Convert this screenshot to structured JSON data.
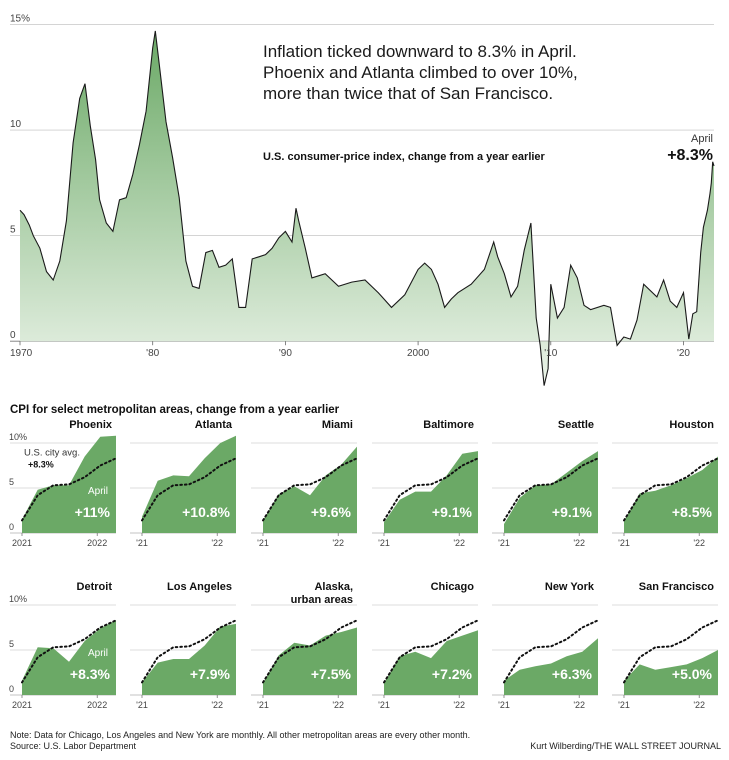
{
  "headline": [
    "Inflation ticked downward to 8.3% in April.",
    "Phoenix and Atlanta climbed to over 10%,",
    "more than twice that of San Francisco."
  ],
  "main_chart_subtitle": "U.S. consumer-price index, change from a year earlier",
  "callout": {
    "label": "April",
    "value": "+8.3%"
  },
  "metro_section_title": "CPI for select metropolitan areas, change from a year earlier",
  "colors": {
    "fill_dark": "#6ba966",
    "fill_light": "#e9f3e7",
    "line": "#1a1a1a",
    "grid": "#bbbbbb"
  },
  "chart_data": [
    {
      "type": "area",
      "title": "U.S. consumer-price index, change from a year earlier",
      "unit": "%",
      "x": [
        1970,
        1970.3,
        1970.7,
        1971,
        1971.5,
        1972,
        1972.5,
        1973,
        1973.5,
        1974,
        1974.5,
        1974.9,
        1975.3,
        1975.7,
        1976,
        1976.5,
        1977,
        1977.5,
        1978,
        1978.5,
        1979,
        1979.5,
        1980,
        1980.2,
        1980.5,
        1981,
        1981.5,
        1982,
        1982.5,
        1983,
        1983.5,
        1984,
        1984.5,
        1985,
        1985.5,
        1986,
        1986.5,
        1987,
        1987.5,
        1988,
        1988.5,
        1989,
        1989.5,
        1990,
        1990.5,
        1990.8,
        1991,
        1991.5,
        1992,
        1992.5,
        1993,
        1994,
        1995,
        1996,
        1997,
        1998,
        1999,
        2000,
        2000.5,
        2001,
        2001.5,
        2002,
        2002.5,
        2003,
        2004,
        2005,
        2005.7,
        2006,
        2006.5,
        2007,
        2007.5,
        2008,
        2008.5,
        2008.9,
        2009.2,
        2009.5,
        2009.8,
        2010,
        2010.5,
        2011,
        2011.5,
        2012,
        2012.5,
        2013,
        2014,
        2014.5,
        2015,
        2015.5,
        2016,
        2016.5,
        2017,
        2018,
        2018.5,
        2019,
        2019.5,
        2020,
        2020.4,
        2020.7,
        2021,
        2021.3,
        2021.5,
        2021.8,
        2022,
        2022.1,
        2022.2,
        2022.3
      ],
      "y": [
        6.2,
        6.0,
        5.5,
        5.0,
        4.4,
        3.3,
        2.9,
        3.8,
        5.7,
        9.4,
        11.5,
        12.2,
        10.2,
        8.6,
        6.7,
        5.6,
        5.2,
        6.7,
        6.8,
        7.9,
        9.3,
        10.9,
        13.9,
        14.7,
        13.1,
        10.4,
        8.7,
        6.8,
        3.8,
        2.6,
        2.5,
        4.2,
        4.3,
        3.5,
        3.6,
        3.9,
        1.6,
        1.6,
        3.9,
        4.0,
        4.1,
        4.4,
        4.9,
        5.2,
        4.7,
        6.3,
        5.7,
        4.4,
        3.0,
        3.1,
        3.2,
        2.6,
        2.8,
        2.9,
        2.3,
        1.6,
        2.2,
        3.4,
        3.7,
        3.4,
        2.7,
        1.6,
        2.0,
        2.3,
        2.7,
        3.4,
        4.7,
        4.0,
        3.2,
        2.1,
        2.6,
        4.3,
        5.6,
        1.1,
        -0.2,
        -2.1,
        -1.3,
        2.7,
        1.1,
        1.6,
        3.6,
        3.0,
        1.7,
        1.5,
        1.7,
        1.6,
        -0.2,
        0.2,
        0.1,
        1.0,
        2.7,
        2.1,
        2.9,
        1.9,
        1.6,
        2.3,
        0.1,
        1.3,
        1.4,
        4.2,
        5.4,
        6.2,
        7.0,
        7.5,
        8.5,
        8.3
      ],
      "xticks": [
        {
          "v": 1970,
          "label": "1970"
        },
        {
          "v": 1980,
          "label": "'80"
        },
        {
          "v": 1990,
          "label": "'90"
        },
        {
          "v": 2000,
          "label": "2000"
        },
        {
          "v": 2010,
          "label": "'10"
        },
        {
          "v": 2020,
          "label": "'20"
        }
      ],
      "yticks": [
        {
          "v": 0,
          "label": "0"
        },
        {
          "v": 5,
          "label": "5"
        },
        {
          "v": 10,
          "label": "10"
        },
        {
          "v": 15,
          "label": "15%"
        }
      ],
      "xlim": [
        1970,
        2022.3
      ],
      "ylim": [
        -2.5,
        15.5
      ],
      "grid": true
    },
    {
      "type": "area",
      "title": "CPI for select metropolitan areas, change from a year earlier",
      "unit": "%",
      "x": [
        0,
        0.1667,
        0.3333,
        0.5,
        0.6667,
        0.8333,
        1
      ],
      "xticks_first": [
        "2021",
        "2022"
      ],
      "xticks_other": [
        "'21",
        "'22"
      ],
      "yticks": [
        {
          "v": 0,
          "label": "0"
        },
        {
          "v": 5,
          "label": "5"
        },
        {
          "v": 10,
          "label": "10%"
        }
      ],
      "ylim": [
        0,
        11
      ],
      "grid": true,
      "us_city_avg": {
        "label": "U.S. city avg.",
        "value_label": "+8.3%",
        "values": [
          1.4,
          4.2,
          5.3,
          5.4,
          6.2,
          7.5,
          8.3
        ]
      },
      "panel_sub_label": "April",
      "panels": [
        {
          "name": "Phoenix",
          "value_label": "+11%",
          "values": [
            1.5,
            4.8,
            5.3,
            5.3,
            8.5,
            10.7,
            10.8
          ]
        },
        {
          "name": "Atlanta",
          "value_label": "+10.8%",
          "values": [
            1.8,
            5.8,
            6.4,
            6.3,
            8.3,
            10.0,
            10.8
          ]
        },
        {
          "name": "Miami",
          "value_label": "+9.6%",
          "values": [
            1.4,
            4.3,
            5.2,
            4.2,
            6.4,
            7.6,
            9.6
          ]
        },
        {
          "name": "Baltimore",
          "value_label": "+9.1%",
          "values": [
            1.2,
            3.7,
            4.6,
            4.6,
            6.4,
            8.8,
            9.1
          ]
        },
        {
          "name": "Seattle",
          "value_label": "+9.1%",
          "values": [
            1.0,
            3.9,
            5.3,
            5.4,
            6.7,
            8.0,
            9.1
          ]
        },
        {
          "name": "Houston",
          "value_label": "+8.5%",
          "values": [
            1.3,
            4.4,
            4.7,
            5.3,
            6.1,
            7.0,
            8.5
          ]
        },
        {
          "name": "Detroit",
          "value_label": "+8.3%",
          "values": [
            1.6,
            5.3,
            5.2,
            3.7,
            6.0,
            7.4,
            8.3
          ]
        },
        {
          "name": "Los Angeles",
          "value_label": "+7.9%",
          "values": [
            1.4,
            3.6,
            4.0,
            4.0,
            5.5,
            7.6,
            7.9
          ]
        },
        {
          "name": "Alaska, urban areas",
          "value_label": "+7.5%",
          "values": [
            1.3,
            4.4,
            5.8,
            5.5,
            6.6,
            7.0,
            7.5
          ]
        },
        {
          "name": "Chicago",
          "value_label": "+7.2%",
          "values": [
            1.3,
            4.3,
            4.8,
            4.1,
            6.0,
            6.6,
            7.2
          ]
        },
        {
          "name": "New York",
          "value_label": "+6.3%",
          "values": [
            1.6,
            2.8,
            3.2,
            3.5,
            4.3,
            4.8,
            6.3
          ]
        },
        {
          "name": "San Francisco",
          "value_label": "+5.0%",
          "values": [
            1.6,
            3.4,
            2.8,
            3.1,
            3.4,
            4.1,
            5.0
          ]
        }
      ]
    }
  ],
  "footnote": [
    "Note: Data for Chicago, Los Angeles and New York are monthly. All other metropolitan areas are every other month.",
    "Source: U.S. Labor Department"
  ],
  "credit": "Kurt Wilberding/THE WALL STREET JOURNAL"
}
